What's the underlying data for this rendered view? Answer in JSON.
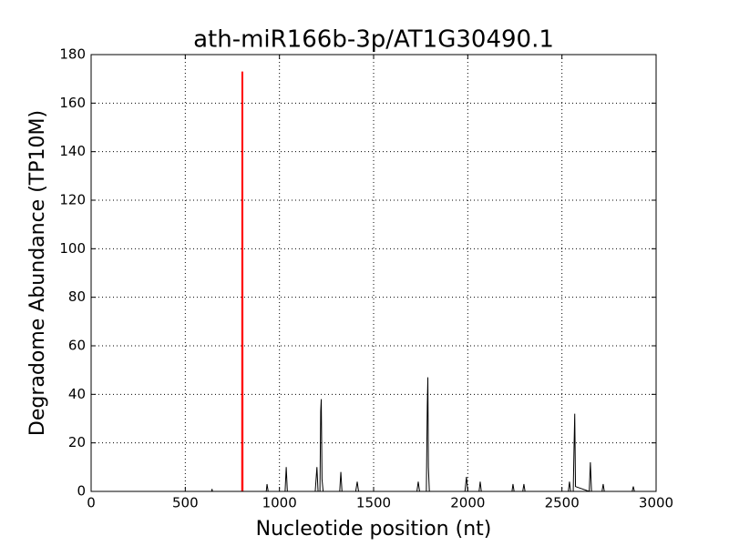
{
  "chart_data": {
    "type": "line",
    "title": "ath-miR166b-3p/AT1G30490.1",
    "xlabel": "Nucleotide position (nt)",
    "ylabel": "Degradome Abundance (TP10M)",
    "xlim": [
      0,
      3000
    ],
    "xticks": [
      0,
      500,
      1000,
      1500,
      2000,
      2500,
      3000
    ],
    "ylim": [
      0,
      180
    ],
    "yticks": [
      0,
      20,
      40,
      60,
      80,
      100,
      120,
      140,
      160,
      180
    ],
    "grid": true,
    "series": [
      {
        "color": "#000000",
        "x": [
          0,
          600,
          640,
          642,
          644,
          900,
          930,
          934,
          940,
          960,
          1030,
          1036,
          1042,
          1060,
          1190,
          1199,
          1205,
          1215,
          1219,
          1222,
          1226,
          1232,
          1320,
          1326,
          1332,
          1405,
          1413,
          1420,
          1730,
          1737,
          1744,
          1780,
          1785,
          1788,
          1791,
          1796,
          1985,
          1993,
          2000,
          2060,
          2066,
          2072,
          2235,
          2240,
          2246,
          2292,
          2298,
          2304,
          2534,
          2540,
          2546,
          2560,
          2564,
          2568,
          2572,
          2645,
          2651,
          2657,
          2713,
          2719,
          2725,
          2873,
          2879,
          2885,
          2950
        ],
        "values": [
          0,
          0,
          0,
          1,
          0,
          0,
          0,
          3,
          0,
          0,
          0,
          10,
          0,
          0,
          0,
          10,
          0,
          0,
          33,
          38,
          5,
          0,
          0,
          8,
          0,
          0,
          4,
          0,
          0,
          4,
          0,
          0,
          35,
          47,
          10,
          0,
          0,
          6,
          0,
          0,
          4,
          0,
          0,
          3,
          0,
          0,
          3,
          0,
          0,
          4,
          0,
          0,
          17,
          32,
          2,
          0,
          12,
          0,
          0,
          3,
          0,
          0,
          2,
          0,
          0
        ]
      },
      {
        "color": "#ff0000",
        "x": [
          802,
          803,
          804
        ],
        "values": [
          0,
          173,
          0
        ]
      }
    ]
  }
}
